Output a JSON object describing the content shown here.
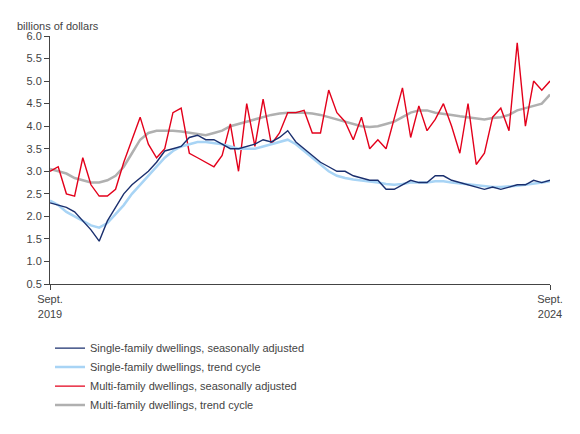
{
  "chart_data": {
    "type": "line",
    "ylabel": "billions of dollars",
    "categories": [
      "Sept.\n2019",
      null,
      null,
      null,
      null,
      null,
      null,
      null,
      null,
      null,
      null,
      null,
      null,
      null,
      null,
      null,
      null,
      null,
      null,
      null,
      null,
      null,
      null,
      null,
      null,
      null,
      null,
      null,
      null,
      null,
      null,
      null,
      null,
      null,
      null,
      null,
      null,
      null,
      null,
      null,
      null,
      null,
      null,
      null,
      null,
      null,
      null,
      null,
      null,
      null,
      null,
      null,
      null,
      null,
      null,
      null,
      null,
      null,
      null,
      null,
      null,
      "Sept.\n2024"
    ],
    "series": [
      {
        "name": "Multi-family dwellings, trend cycle",
        "color": "#b0b0b0",
        "values": [
          3.05,
          3.0,
          2.95,
          2.85,
          2.8,
          2.75,
          2.75,
          2.8,
          2.9,
          3.1,
          3.4,
          3.7,
          3.85,
          3.9,
          3.9,
          3.9,
          3.88,
          3.85,
          3.82,
          3.8,
          3.85,
          3.9,
          4.0,
          4.05,
          4.1,
          4.15,
          4.2,
          4.25,
          4.28,
          4.3,
          4.3,
          4.3,
          4.28,
          4.25,
          4.2,
          4.15,
          4.1,
          4.05,
          4.0,
          3.98,
          4.0,
          4.05,
          4.1,
          4.2,
          4.3,
          4.35,
          4.35,
          4.3,
          4.28,
          4.25,
          4.22,
          4.2,
          4.18,
          4.15,
          4.18,
          4.2,
          4.25,
          4.35,
          4.4,
          4.45,
          4.5,
          4.7
        ]
      },
      {
        "name": "Multi-family dwellings, seasonally adjusted",
        "color": "#e3001b",
        "values": [
          3.0,
          3.1,
          2.5,
          2.45,
          3.3,
          2.7,
          2.45,
          2.45,
          2.6,
          3.2,
          3.7,
          4.2,
          3.6,
          3.3,
          3.5,
          4.3,
          4.4,
          3.4,
          3.3,
          3.2,
          3.1,
          3.35,
          4.05,
          3.0,
          4.5,
          3.55,
          4.6,
          3.6,
          3.85,
          4.3,
          4.3,
          4.35,
          3.85,
          3.85,
          4.8,
          4.3,
          4.1,
          3.7,
          4.2,
          3.5,
          3.7,
          3.5,
          4.2,
          4.85,
          3.75,
          4.45,
          3.9,
          4.15,
          4.5,
          4.0,
          3.4,
          4.5,
          3.15,
          3.4,
          4.2,
          4.4,
          3.9,
          5.85,
          4.0,
          5.0,
          4.8,
          5.0
        ]
      },
      {
        "name": "Single-family dwellings, trend cycle",
        "color": "#a8d4f5",
        "values": [
          2.35,
          2.25,
          2.1,
          2.0,
          1.9,
          1.8,
          1.75,
          1.85,
          2.05,
          2.25,
          2.5,
          2.7,
          2.9,
          3.1,
          3.3,
          3.45,
          3.55,
          3.6,
          3.65,
          3.65,
          3.62,
          3.6,
          3.55,
          3.5,
          3.5,
          3.5,
          3.55,
          3.6,
          3.65,
          3.7,
          3.6,
          3.45,
          3.3,
          3.15,
          3.0,
          2.9,
          2.85,
          2.82,
          2.8,
          2.78,
          2.75,
          2.72,
          2.7,
          2.72,
          2.75,
          2.75,
          2.75,
          2.78,
          2.78,
          2.75,
          2.73,
          2.7,
          2.68,
          2.66,
          2.65,
          2.65,
          2.66,
          2.68,
          2.7,
          2.72,
          2.75,
          2.78
        ]
      },
      {
        "name": "Single-family dwellings, seasonally adjusted",
        "color": "#1a2f6e",
        "values": [
          2.3,
          2.25,
          2.2,
          2.1,
          1.9,
          1.7,
          1.45,
          1.9,
          2.2,
          2.5,
          2.7,
          2.85,
          3.0,
          3.2,
          3.45,
          3.5,
          3.55,
          3.75,
          3.8,
          3.7,
          3.7,
          3.6,
          3.5,
          3.5,
          3.55,
          3.6,
          3.7,
          3.65,
          3.75,
          3.9,
          3.65,
          3.5,
          3.35,
          3.2,
          3.1,
          3.0,
          3.0,
          2.9,
          2.85,
          2.8,
          2.8,
          2.6,
          2.6,
          2.7,
          2.8,
          2.75,
          2.75,
          2.9,
          2.9,
          2.8,
          2.75,
          2.7,
          2.65,
          2.6,
          2.65,
          2.6,
          2.65,
          2.7,
          2.7,
          2.8,
          2.75,
          2.8
        ]
      }
    ],
    "ylim": [
      0.5,
      6.0
    ],
    "yticks": [
      0.5,
      {
        "value": 1.0,
        "label": "1.0"
      },
      1.5,
      {
        "value": 2.0,
        "label": "2.0"
      },
      2.5,
      {
        "value": 3.0,
        "label": "3.0"
      },
      3.5,
      {
        "value": 4.0,
        "label": "4.0"
      },
      4.5,
      {
        "value": 5.0,
        "label": "5.0"
      },
      5.5,
      {
        "value": 6.0,
        "label": "6.0"
      }
    ],
    "grid": false,
    "legend": "lower left"
  }
}
